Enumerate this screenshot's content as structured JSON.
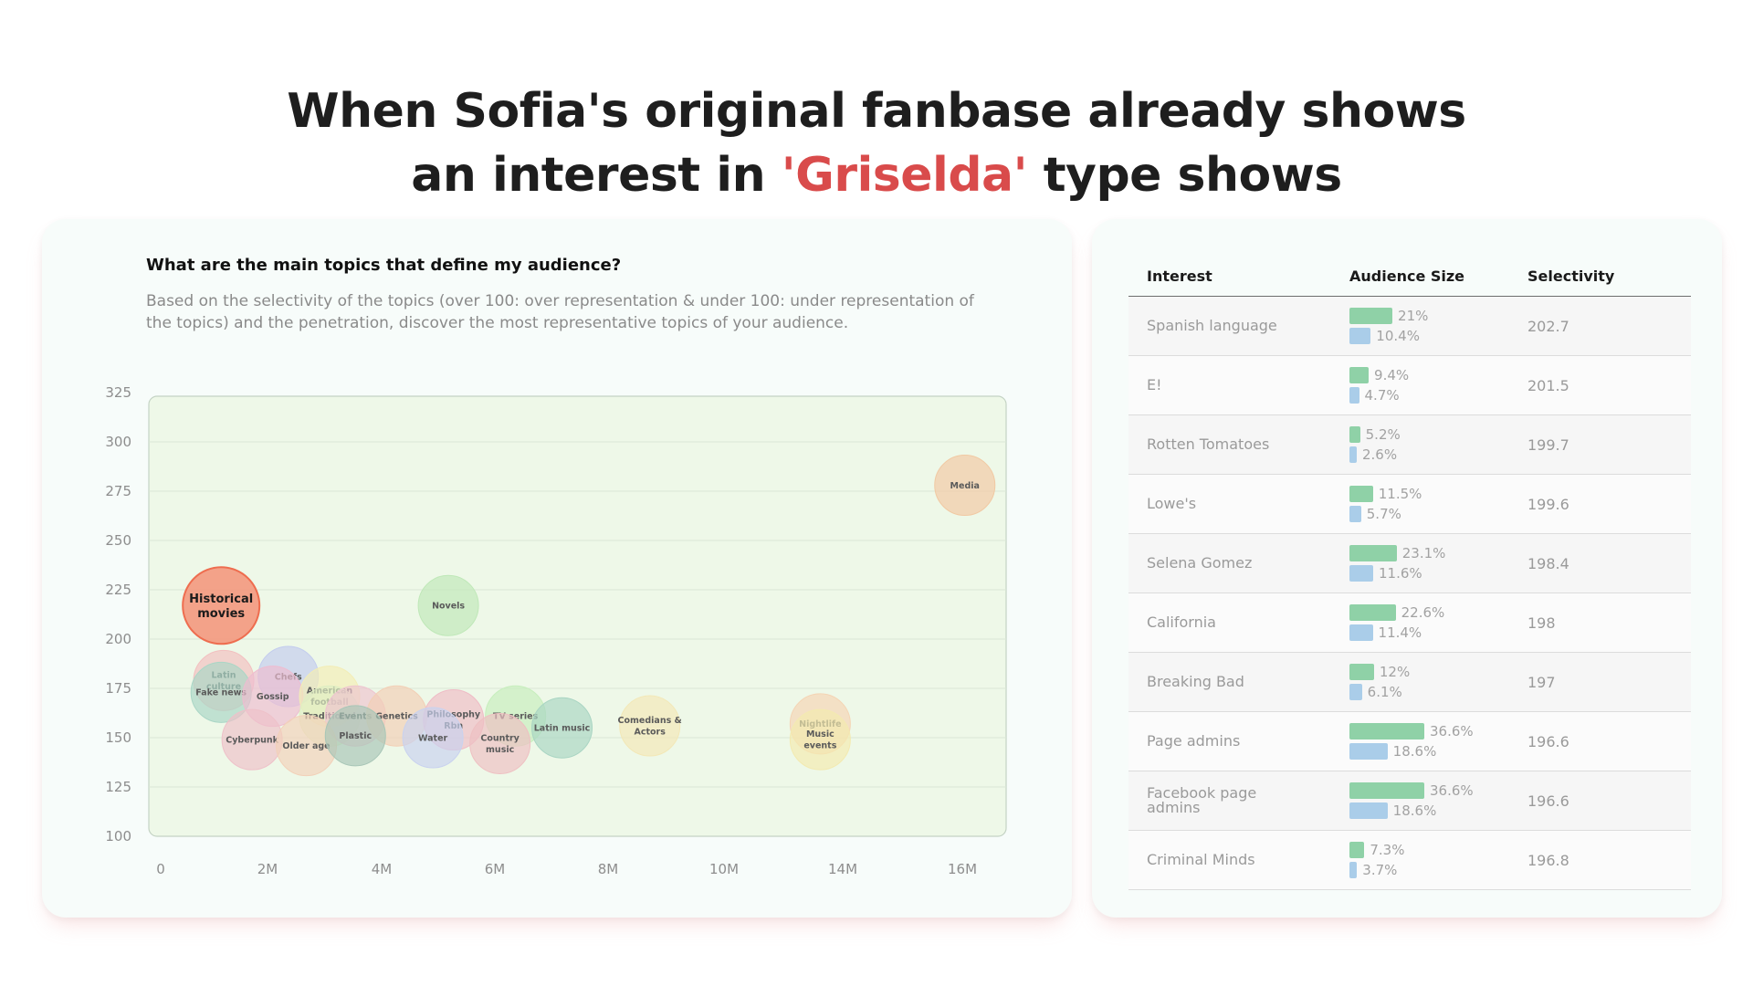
{
  "headline": {
    "line1": "When Sofia's original fanbase already shows",
    "line2_prefix": "an interest in",
    "line2_accent": "'Griselda'",
    "line2_suffix": "type shows"
  },
  "chart_data": {
    "type": "bubble",
    "title": "What are the main topics that define my audience?",
    "subtitle": "Based on the selectivity of the topics (over 100: over representation & under 100: under representation of the topics) and the penetration, discover the most representative topics of your audience.",
    "y_ticks": [
      100,
      125,
      150,
      175,
      200,
      225,
      250,
      275,
      300,
      325
    ],
    "x_tick_labels": [
      "0",
      "2M",
      "4M",
      "6M",
      "8M",
      "10M",
      "14M",
      "16M"
    ],
    "grid": true,
    "points": [
      {
        "label": "Historical movies",
        "x": 1.4,
        "y": 217,
        "color": "#f39a80",
        "highlight": true
      },
      {
        "label": "Media",
        "x": 15.8,
        "y": 278,
        "color": "#f1c9a3"
      },
      {
        "label": "Novels",
        "x": 5.8,
        "y": 217,
        "color": "#bfe8b8"
      },
      {
        "label": "Latin culture",
        "x": 1.45,
        "y": 179,
        "color": "#f2c0c0"
      },
      {
        "label": "Chefs",
        "x": 2.7,
        "y": 181,
        "color": "#c3ccee"
      },
      {
        "label": "Fake news",
        "x": 1.4,
        "y": 173,
        "color": "#aad6c6"
      },
      {
        "label": "Gossip",
        "x": 2.4,
        "y": 171,
        "color": "#eebcd0"
      },
      {
        "label": "American football",
        "x": 3.5,
        "y": 171,
        "color": "#f3edb6"
      },
      {
        "label": "Traditional",
        "x": 3.5,
        "y": 161,
        "color": "#dfeec2"
      },
      {
        "label": "Events",
        "x": 4.0,
        "y": 161,
        "color": "#eec4cf"
      },
      {
        "label": "Genetics",
        "x": 4.8,
        "y": 161,
        "color": "#f2cfb6"
      },
      {
        "label": "Philosophy Rbn",
        "x": 5.9,
        "y": 159,
        "color": "#efbcc6"
      },
      {
        "label": "TV series",
        "x": 7.1,
        "y": 161,
        "color": "#c7eebd"
      },
      {
        "label": "Latin music",
        "x": 8.0,
        "y": 155,
        "color": "#a9d5c3"
      },
      {
        "label": "Comedians & Actors",
        "x": 9.7,
        "y": 156,
        "color": "#f3e8b7"
      },
      {
        "label": "Nightlife",
        "x": 13.0,
        "y": 157,
        "color": "#f4d4b4"
      },
      {
        "label": "Music events",
        "x": 13.0,
        "y": 149,
        "color": "#f3eab0"
      },
      {
        "label": "Cyberpunk",
        "x": 2.0,
        "y": 149,
        "color": "#eec1c9"
      },
      {
        "label": "Older age",
        "x": 3.05,
        "y": 146,
        "color": "#f2d1b9"
      },
      {
        "label": "Plastic",
        "x": 4.0,
        "y": 151,
        "color": "#a8c6b7"
      },
      {
        "label": "Water",
        "x": 5.5,
        "y": 150,
        "color": "#c9d2ef"
      },
      {
        "label": "Country music",
        "x": 6.8,
        "y": 147,
        "color": "#eec0c2"
      }
    ]
  },
  "table": {
    "headers": {
      "interest": "Interest",
      "size": "Audience Size",
      "selectivity": "Selectivity"
    },
    "rows": [
      {
        "interest": "Spanish language",
        "pct_a": "21%",
        "val_a": 21,
        "pct_b": "10.4%",
        "val_b": 10.4,
        "selectivity": "202.7"
      },
      {
        "interest": "E!",
        "pct_a": "9.4%",
        "val_a": 9.4,
        "pct_b": "4.7%",
        "val_b": 4.7,
        "selectivity": "201.5"
      },
      {
        "interest": "Rotten Tomatoes",
        "pct_a": "5.2%",
        "val_a": 5.2,
        "pct_b": "2.6%",
        "val_b": 2.6,
        "selectivity": "199.7"
      },
      {
        "interest": "Lowe's",
        "pct_a": "11.5%",
        "val_a": 11.5,
        "pct_b": "5.7%",
        "val_b": 5.7,
        "selectivity": "199.6"
      },
      {
        "interest": "Selena Gomez",
        "pct_a": "23.1%",
        "val_a": 23.1,
        "pct_b": "11.6%",
        "val_b": 11.6,
        "selectivity": "198.4"
      },
      {
        "interest": "California",
        "pct_a": "22.6%",
        "val_a": 22.6,
        "pct_b": "11.4%",
        "val_b": 11.4,
        "selectivity": "198"
      },
      {
        "interest": "Breaking Bad",
        "pct_a": "12%",
        "val_a": 12,
        "pct_b": "6.1%",
        "val_b": 6.1,
        "selectivity": "197"
      },
      {
        "interest": "Page admins",
        "pct_a": "36.6%",
        "val_a": 36.6,
        "pct_b": "18.6%",
        "val_b": 18.6,
        "selectivity": "196.6"
      },
      {
        "interest": "Facebook page admins",
        "pct_a": "36.6%",
        "val_a": 36.6,
        "pct_b": "18.6%",
        "val_b": 18.6,
        "selectivity": "196.6"
      },
      {
        "interest": "Criminal Minds",
        "pct_a": "7.3%",
        "val_a": 7.3,
        "pct_b": "3.7%",
        "val_b": 3.7,
        "selectivity": "196.8"
      }
    ]
  }
}
